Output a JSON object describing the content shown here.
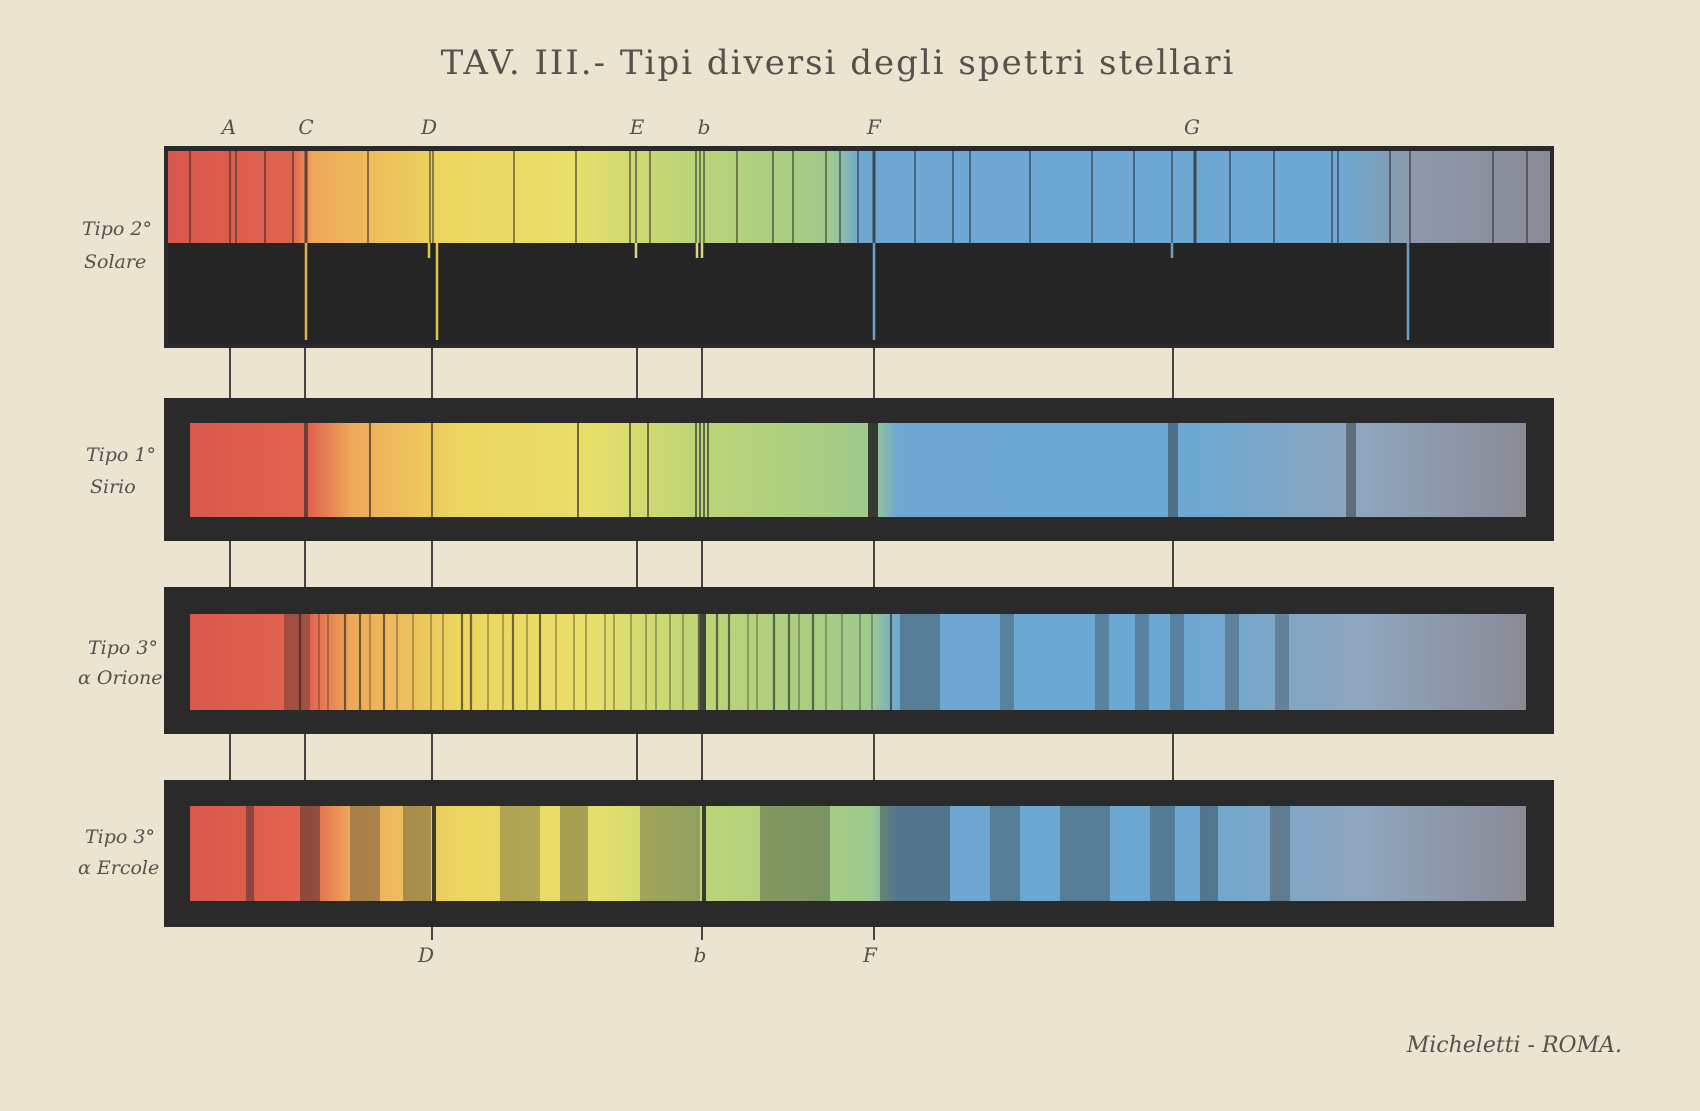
{
  "title": "TAV. III.- Tipi diversi degli spettri stellari",
  "imprint": "Micheletti - ROMA.",
  "top_markers": [
    {
      "letter": "A"
    },
    {
      "letter": "C"
    },
    {
      "letter": "D"
    },
    {
      "letter": "E"
    },
    {
      "letter": "b"
    },
    {
      "letter": "F"
    },
    {
      "letter": "G"
    }
  ],
  "bottom_markers": [
    {
      "letter": "D"
    },
    {
      "letter": "b"
    },
    {
      "letter": "F"
    }
  ],
  "rows": [
    {
      "label_line1": "Tipo 2°",
      "label_line2": "Solare"
    },
    {
      "label_line1": "Tipo 1°",
      "label_line2": "Sirio"
    },
    {
      "label_line1": "Tipo 3°",
      "label_line2": "α Orione"
    },
    {
      "label_line1": "Tipo 3°",
      "label_line2": "α Ercole"
    }
  ],
  "colors": {
    "background": "#ebe4d1",
    "frame": "#2b2a2a",
    "red": "#d9574c",
    "orange": "#eea85a",
    "yellow": "#ecdb61",
    "green": "#a9cd82",
    "blue": "#6ea8d2",
    "violet": "#8a8a96",
    "text": "#55524e"
  }
}
